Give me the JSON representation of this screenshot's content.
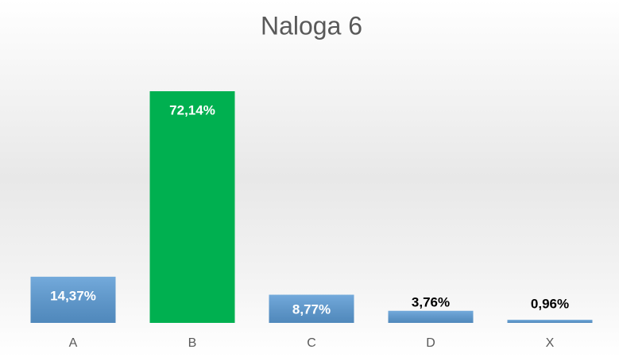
{
  "chart_data": {
    "type": "bar",
    "title": "Naloga 6",
    "categories": [
      "A",
      "B",
      "C",
      "D",
      "X"
    ],
    "values": [
      14.37,
      72.14,
      8.77,
      3.76,
      0.96
    ],
    "value_labels": [
      "14,37%",
      "72,14%",
      "8,77%",
      "3,76%",
      "0,96%"
    ],
    "colors": [
      "#5b9bd5",
      "#00b050",
      "#5b9bd5",
      "#5b9bd5",
      "#5b9bd5"
    ]
  }
}
